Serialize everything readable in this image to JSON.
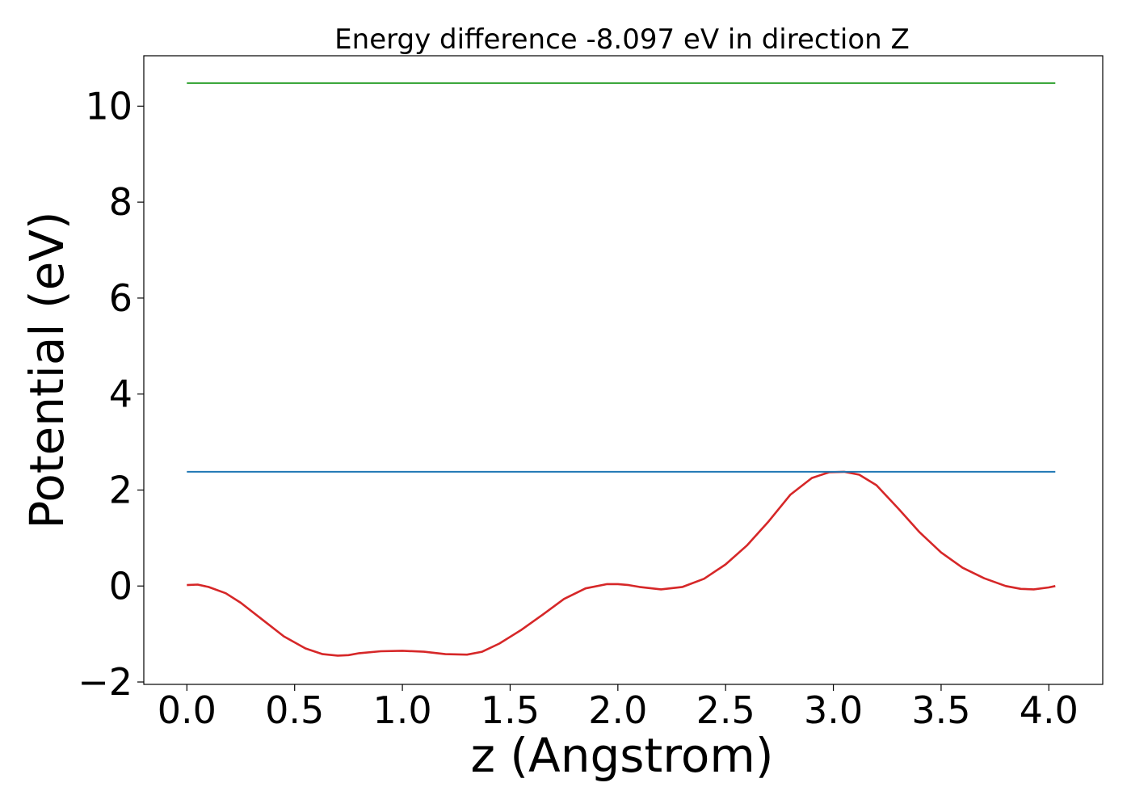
{
  "chart_data": {
    "type": "line",
    "title": "Energy difference -8.097 eV in direction Z",
    "xlabel": "z (Angstrom)",
    "ylabel": "Potential (eV)",
    "xlim": [
      -0.2,
      4.25
    ],
    "ylim": [
      -2.05,
      11.05
    ],
    "xticks": [
      0.0,
      0.5,
      1.0,
      1.5,
      2.0,
      2.5,
      3.0,
      3.5,
      4.0
    ],
    "xtick_labels": [
      "0.0",
      "0.5",
      "1.0",
      "1.5",
      "2.0",
      "2.5",
      "3.0",
      "3.5",
      "4.0"
    ],
    "yticks": [
      -2,
      0,
      2,
      4,
      6,
      8,
      10
    ],
    "ytick_labels": [
      "−2",
      "0",
      "2",
      "4",
      "6",
      "8",
      "10"
    ],
    "grid": false,
    "series": [
      {
        "color": "#d62728",
        "x": [
          0.0,
          0.05,
          0.1,
          0.18,
          0.25,
          0.35,
          0.45,
          0.55,
          0.63,
          0.7,
          0.75,
          0.8,
          0.9,
          1.0,
          1.1,
          1.2,
          1.3,
          1.37,
          1.45,
          1.55,
          1.65,
          1.75,
          1.85,
          1.95,
          2.0,
          2.05,
          2.1,
          2.2,
          2.3,
          2.4,
          2.5,
          2.6,
          2.7,
          2.8,
          2.9,
          2.98,
          3.05,
          3.12,
          3.2,
          3.3,
          3.4,
          3.5,
          3.6,
          3.7,
          3.8,
          3.87,
          3.93,
          4.0,
          4.03
        ],
        "y": [
          0.02,
          0.03,
          -0.02,
          -0.15,
          -0.35,
          -0.7,
          -1.05,
          -1.3,
          -1.42,
          -1.45,
          -1.44,
          -1.4,
          -1.36,
          -1.35,
          -1.37,
          -1.42,
          -1.43,
          -1.37,
          -1.2,
          -0.92,
          -0.6,
          -0.27,
          -0.05,
          0.04,
          0.04,
          0.02,
          -0.02,
          -0.07,
          -0.02,
          0.15,
          0.45,
          0.85,
          1.35,
          1.9,
          2.25,
          2.37,
          2.38,
          2.32,
          2.1,
          1.62,
          1.12,
          0.7,
          0.38,
          0.16,
          0.0,
          -0.06,
          -0.07,
          -0.03,
          0.0
        ]
      },
      {
        "color": "#1f77b4",
        "x": [
          0.0,
          4.03
        ],
        "y": [
          2.38,
          2.38
        ]
      },
      {
        "color": "#2ca02c",
        "x": [
          0.0,
          4.03
        ],
        "y": [
          10.48,
          10.48
        ]
      }
    ]
  }
}
